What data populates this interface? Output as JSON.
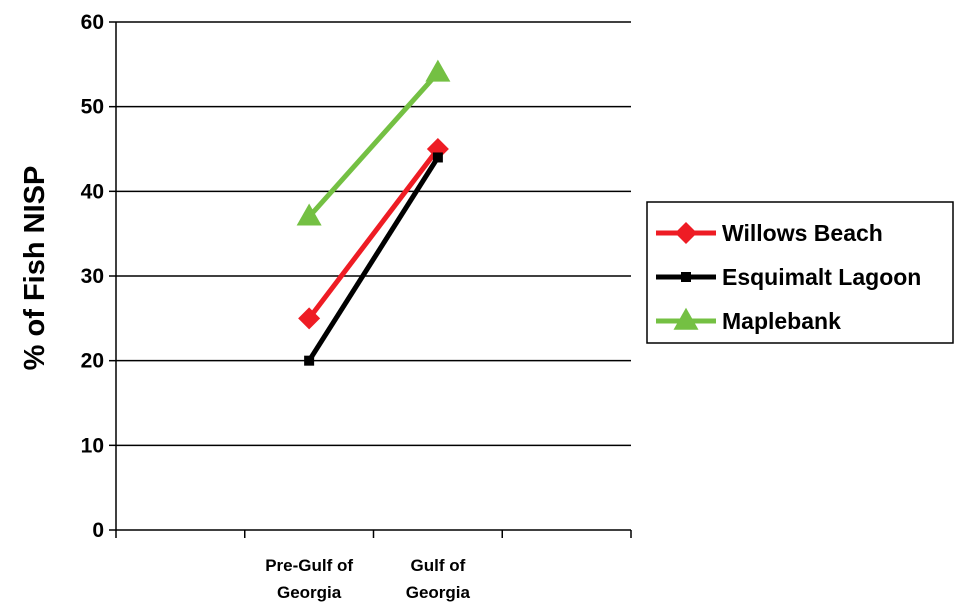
{
  "chart_data": {
    "type": "line",
    "categories": [
      "Pre-Gulf of Georgia",
      "Gulf of Georgia"
    ],
    "category_label_lines": [
      [
        "Pre-Gulf of",
        "Georgia"
      ],
      [
        "Gulf of",
        "Georgia"
      ]
    ],
    "x_slots": 4,
    "category_slots": [
      1,
      2
    ],
    "ylabel": "% of Fish NISP",
    "ylim": [
      0,
      60
    ],
    "yticks": [
      0,
      10,
      20,
      30,
      40,
      50,
      60
    ],
    "grid": true,
    "legend": "right",
    "series": [
      {
        "name": "Willows Beach",
        "values": [
          25,
          45
        ],
        "color": "#ee1c24",
        "marker": "diamond"
      },
      {
        "name": "Esquimalt Lagoon",
        "values": [
          20,
          44
        ],
        "color": "#000000",
        "marker": "square"
      },
      {
        "name": "Maplebank",
        "values": [
          37,
          54
        ],
        "color": "#74c043",
        "marker": "triangle"
      }
    ]
  }
}
